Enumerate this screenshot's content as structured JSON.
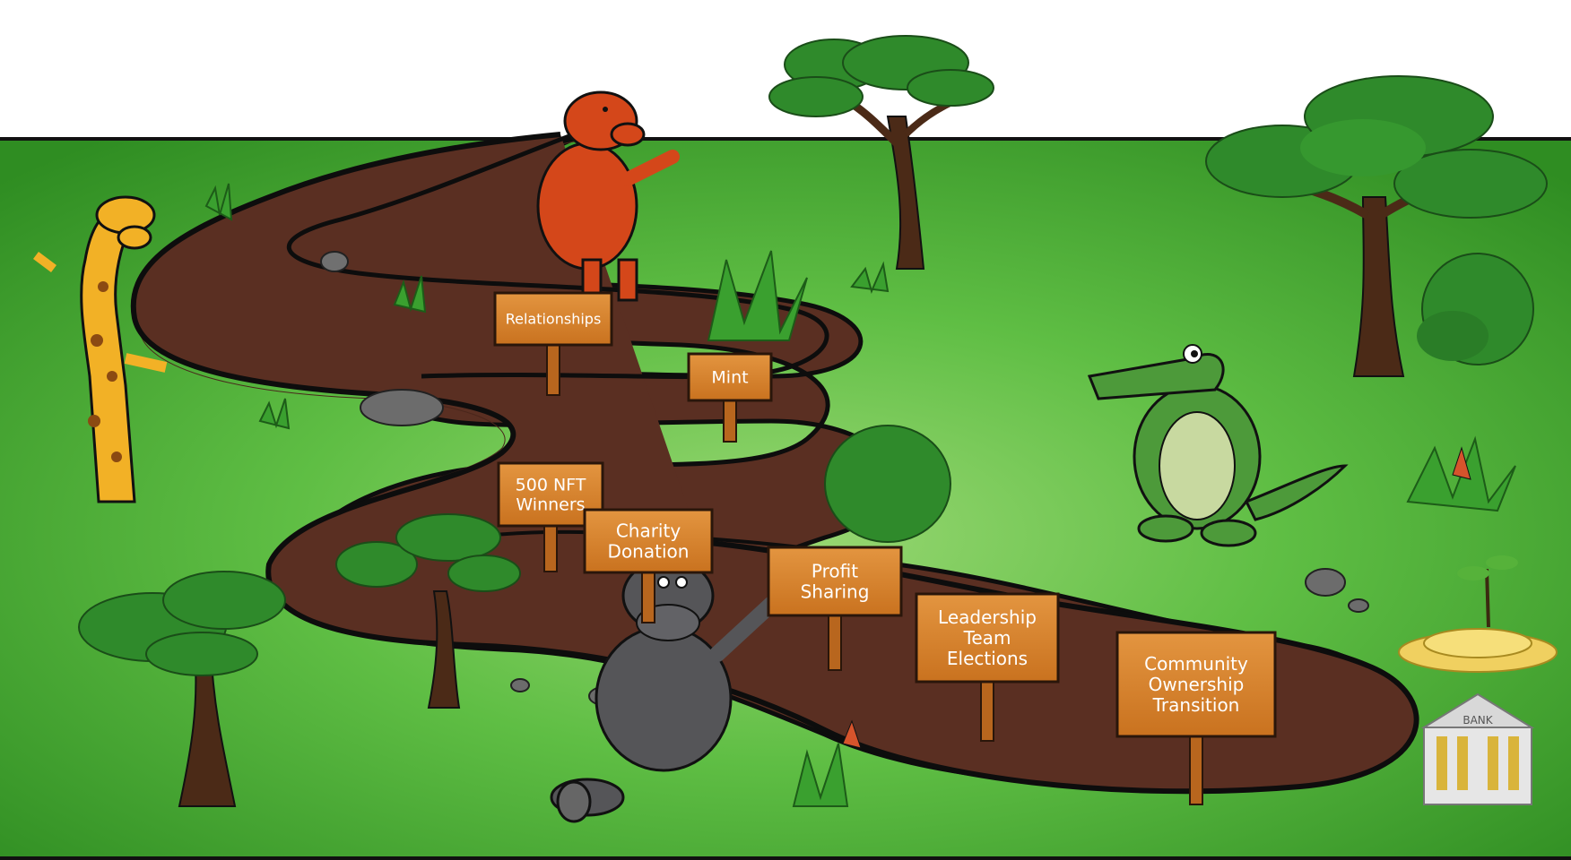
{
  "roadmap": {
    "signs": [
      {
        "id": "relationships",
        "lines": [
          "Relationships"
        ]
      },
      {
        "id": "mint",
        "lines": [
          "Mint"
        ]
      },
      {
        "id": "nft-winners",
        "lines": [
          "500 NFT",
          "Winners"
        ]
      },
      {
        "id": "charity",
        "lines": [
          "Charity",
          "Donation"
        ]
      },
      {
        "id": "profit",
        "lines": [
          "Profit",
          "Sharing"
        ]
      },
      {
        "id": "leadership",
        "lines": [
          "Leadership",
          "Team",
          "Elections"
        ]
      },
      {
        "id": "community",
        "lines": [
          "Community",
          "Ownership",
          "Transition"
        ]
      }
    ],
    "bank_label": "BANK"
  },
  "colors": {
    "grass": "#4fb33a",
    "grass_light": "#8fd46a",
    "path": "#5a2f22",
    "path_edge": "#0d0d0d",
    "sign_wood": "#d8842d",
    "sign_post": "#b8661e",
    "tree_leaf": "#2f8a2b",
    "tree_trunk": "#4b2a17",
    "giraffe": "#f2b126",
    "warthog": "#d4471a",
    "crocodile": "#4d9a3a",
    "hippo": "#555558",
    "gold": "#f0d060"
  }
}
